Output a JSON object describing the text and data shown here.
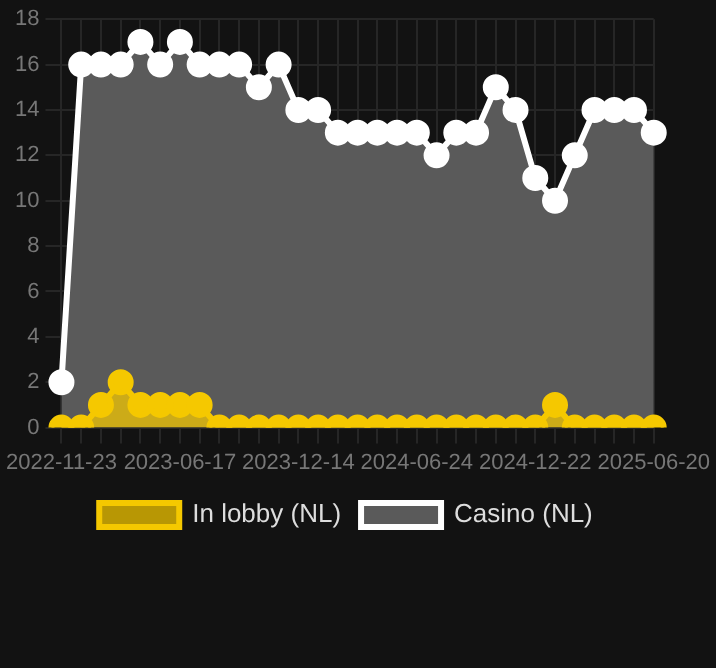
{
  "chart_data": {
    "type": "area",
    "categories": [
      "2022-11-23",
      null,
      null,
      null,
      null,
      null,
      "2023-06-17",
      null,
      null,
      null,
      null,
      null,
      "2023-12-14",
      null,
      null,
      null,
      null,
      null,
      "2024-06-24",
      null,
      null,
      null,
      null,
      null,
      "2024-12-22",
      null,
      null,
      null,
      null,
      null,
      "2025-06-20"
    ],
    "series": [
      {
        "name": "In lobby (NL)",
        "color": "#f5c800",
        "values": [
          0,
          0,
          1,
          2,
          1,
          1,
          1,
          1,
          0,
          0,
          0,
          0,
          0,
          0,
          0,
          0,
          0,
          0,
          0,
          0,
          0,
          0,
          0,
          0,
          0,
          1,
          0,
          0,
          0,
          0,
          0
        ]
      },
      {
        "name": "Casino (NL)",
        "color": "#ffffff",
        "values": [
          2,
          16,
          16,
          16,
          17,
          16,
          17,
          16,
          16,
          16,
          15,
          16,
          14,
          14,
          13,
          13,
          13,
          13,
          13,
          12,
          13,
          13,
          15,
          14,
          11,
          10,
          12,
          14,
          14,
          14,
          13
        ]
      }
    ],
    "ylim": [
      0,
      18
    ],
    "yticks": [
      0,
      2,
      4,
      6,
      8,
      10,
      12,
      14,
      16,
      18
    ],
    "grid": true,
    "legend": "bottom",
    "marker": "circle"
  }
}
